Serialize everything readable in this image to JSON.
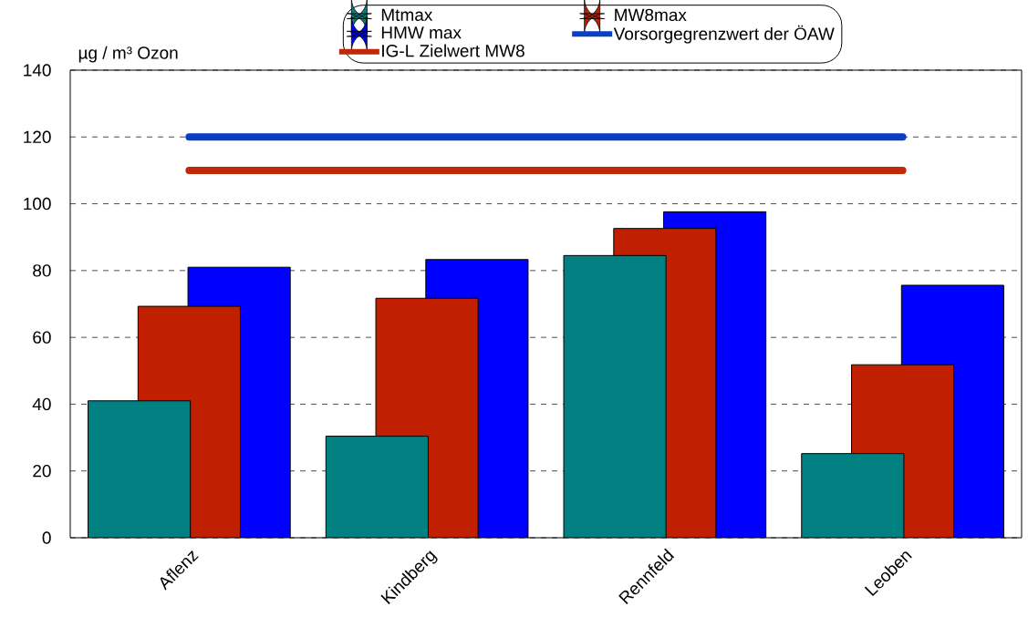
{
  "chart_data": {
    "type": "bar",
    "ylabel": "µg / m³ Ozon",
    "categories": [
      "Aflenz",
      "Kindberg",
      "Rennfeld",
      "Leoben"
    ],
    "series": [
      {
        "name": "Mtmax",
        "color": "#008080",
        "values": [
          41,
          30.4,
          84.5,
          25.2
        ]
      },
      {
        "name": "MW8max",
        "color": "#c02000",
        "values": [
          69.3,
          71.7,
          92.6,
          51.8
        ]
      },
      {
        "name": "HMW max",
        "color": "#0000ff",
        "values": [
          81,
          83.3,
          97.6,
          75.6
        ]
      },
      {
        "name": "Vorsorgegrenzwert der ÖAW",
        "type": "line",
        "color": "#0a3fc4",
        "values": [
          120,
          120,
          120,
          120
        ]
      },
      {
        "name": "IG-L Zielwert MW8",
        "type": "line",
        "color": "#c0280a",
        "values": [
          110,
          110,
          110,
          110
        ]
      }
    ],
    "ylim": [
      0,
      140
    ],
    "yticks": [
      0,
      20,
      40,
      60,
      80,
      100,
      120,
      140
    ],
    "grid": "y",
    "legend": "top"
  }
}
